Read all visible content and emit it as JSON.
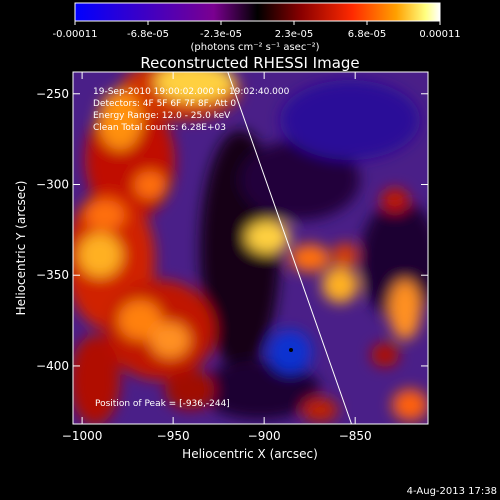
{
  "colorbar": {
    "tick_labels": [
      "-0.00011",
      "-6.8e-05",
      "-2.3e-05",
      "2.3e-05",
      "6.8e-05",
      "0.00011"
    ],
    "unit_label": "(photons cm⁻² s⁻¹ asec⁻²)",
    "colors": [
      "#0000ff",
      "#3a00c8",
      "#7a0090",
      "#000000",
      "#8a0000",
      "#ff2a00",
      "#ffa000",
      "#ffff80",
      "#ffffff"
    ]
  },
  "chart_data": {
    "type": "heatmap",
    "title": "Reconstructed RHESSI Image",
    "xlabel": "Heliocentric X (arcsec)",
    "ylabel": "Heliocentric Y (arcsec)",
    "xlim": [
      -1005,
      -810
    ],
    "ylim": [
      -432,
      -238
    ],
    "xticks": [
      -1000,
      -950,
      -900,
      -850
    ],
    "yticks": [
      -250,
      -300,
      -350,
      -400
    ],
    "x_tick_labels": [
      "−1000",
      "−950",
      "−900",
      "−850"
    ],
    "y_tick_labels": [
      "−250",
      "−300",
      "−350",
      "−400"
    ],
    "colorbar_range": [
      -0.00011,
      0.00011
    ],
    "peak": [
      -936,
      -244
    ],
    "annotations": [
      "19-Sep-2010 19:00:02.000 to 19:02:40.000",
      "Detectors: 4F 5F 6F 7F 8F, Att 0",
      "Energy Range: 12.0 - 25.0 keV",
      "Clean    Total counts: 6.28E+03"
    ],
    "peak_label": "Position of Peak = [-936,-244]",
    "limb_line": [
      [
        -920,
        -238
      ],
      [
        -852,
        -432
      ]
    ]
  },
  "footer": {
    "timestamp": "4-Aug-2013 17:38"
  }
}
